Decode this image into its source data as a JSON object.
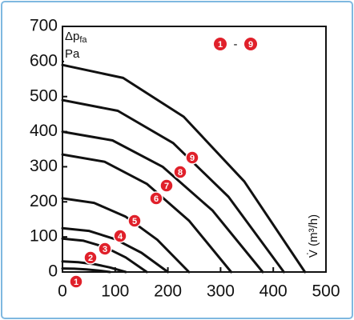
{
  "chart_data": {
    "type": "line",
    "y_label": "Δp",
    "y_label_sub": "fa",
    "y_unit": "Pa",
    "x_label": "V̇ (m³/h)",
    "legend_from": "1",
    "legend_separator": "-",
    "legend_to": "9",
    "xlim": [
      0,
      500
    ],
    "xticks": [
      0,
      100,
      200,
      300,
      400,
      500
    ],
    "ylim": [
      0,
      700
    ],
    "yticks": [
      0,
      100,
      200,
      300,
      400,
      500,
      600,
      700
    ],
    "marker_color": "#e0202a",
    "series": [
      {
        "name": "1",
        "color": "#111111",
        "x": [
          0,
          22.5,
          45,
          67.5,
          90
        ],
        "values": [
          10,
          9.4,
          7.5,
          4.4,
          0
        ]
      },
      {
        "name": "2",
        "color": "#111111",
        "x": [
          0,
          30,
          60,
          90,
          120
        ],
        "values": [
          30,
          28.1,
          22.5,
          13.1,
          0
        ]
      },
      {
        "name": "3",
        "color": "#111111",
        "x": [
          0,
          40,
          80,
          120,
          160
        ],
        "values": [
          95,
          89.1,
          71.3,
          41.6,
          0
        ]
      },
      {
        "name": "4",
        "color": "#111111",
        "x": [
          0,
          50,
          100,
          150,
          200
        ],
        "values": [
          125,
          117.2,
          93.8,
          54.7,
          0
        ]
      },
      {
        "name": "5",
        "color": "#111111",
        "x": [
          0,
          60,
          120,
          180,
          240
        ],
        "values": [
          210,
          196.9,
          157.5,
          91.9,
          0
        ]
      },
      {
        "name": "6",
        "color": "#111111",
        "x": [
          0,
          80,
          160,
          240,
          320
        ],
        "values": [
          335,
          314.1,
          251.3,
          146.6,
          0
        ]
      },
      {
        "name": "7",
        "color": "#111111",
        "x": [
          0,
          95,
          190,
          285,
          380
        ],
        "values": [
          400,
          375,
          300,
          175,
          0
        ]
      },
      {
        "name": "8",
        "color": "#111111",
        "x": [
          0,
          105,
          210,
          315,
          420
        ],
        "values": [
          490,
          459.4,
          367.5,
          214.4,
          0
        ]
      },
      {
        "name": "9",
        "color": "#111111",
        "x": [
          0,
          115,
          230,
          345,
          460
        ],
        "values": [
          590,
          553.1,
          442.5,
          258.1,
          0
        ]
      }
    ]
  }
}
